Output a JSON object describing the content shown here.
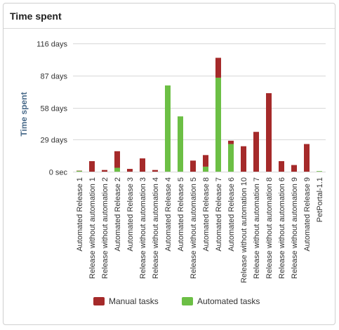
{
  "panel": {
    "title": "Time spent"
  },
  "chart_data": {
    "type": "bar",
    "stacked": true,
    "title": "",
    "ylabel": "Time spent",
    "xlabel": "",
    "ylim": [
      0,
      116
    ],
    "yticks": [
      0,
      29,
      58,
      87,
      116
    ],
    "ytick_labels": [
      "0 sec",
      "29 days",
      "58 days",
      "87 days",
      "116 days"
    ],
    "grid": true,
    "legend_position": "bottom",
    "categories": [
      "Automated Release 1",
      "Release without automation 1",
      "Release without automation 2",
      "Automated Release 2",
      "Automated Release 3",
      "Release without automation 3",
      "Release without automation 4",
      "Automated Release 4",
      "Automated Release 5",
      "Release without automation 5",
      "Automated Release 8",
      "Automated Release 7",
      "Automated Release 6",
      "Release without automation 10",
      "Release without automation 7",
      "Release without automation 8",
      "Release without automation 6",
      "Release without automation 9",
      "Automated Release 9",
      "PetPortal-1.1"
    ],
    "series": [
      {
        "name": "Automated tasks",
        "color": "#6cbf45",
        "values": [
          0.8,
          0,
          0,
          3.5,
          0,
          0,
          0,
          78,
          50,
          0,
          4.5,
          85,
          25,
          0,
          0,
          0,
          0,
          0,
          0,
          0.5
        ]
      },
      {
        "name": "Manual tasks",
        "color": "#a52a2a",
        "values": [
          0.2,
          9.5,
          1.5,
          15,
          2.5,
          12,
          1.5,
          0,
          0,
          10,
          10.5,
          18,
          3,
          23,
          36,
          71,
          9.5,
          6,
          25,
          0
        ]
      }
    ],
    "legend": [
      {
        "name": "Manual tasks",
        "color": "#a52a2a"
      },
      {
        "name": "Automated tasks",
        "color": "#6cbf45"
      }
    ]
  }
}
